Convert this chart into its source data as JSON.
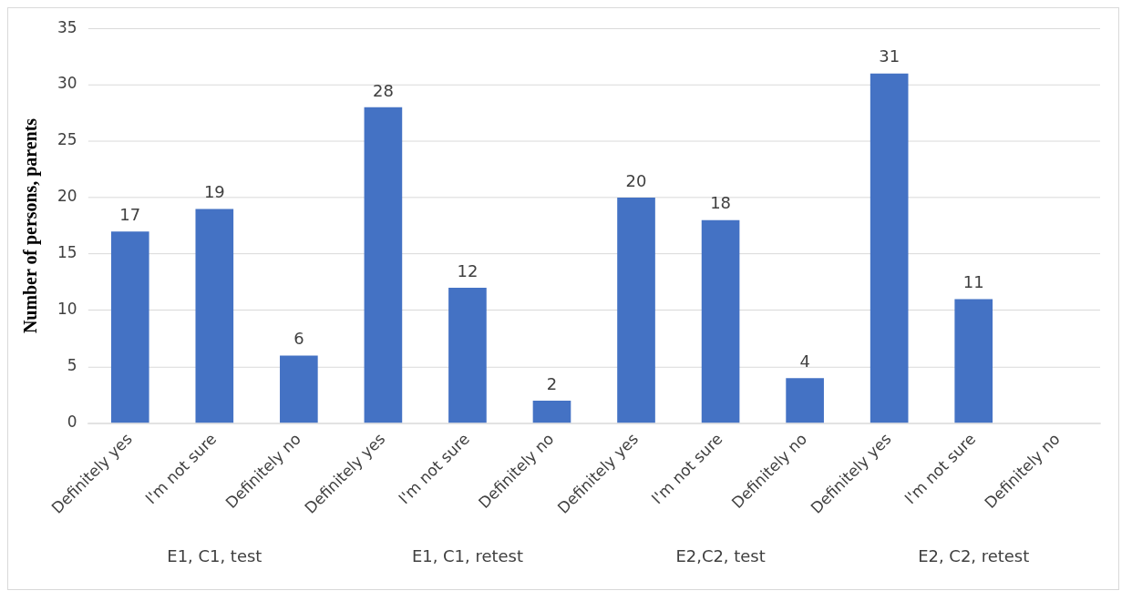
{
  "chart_data": {
    "type": "bar",
    "ylabel": "Number of persons, parents",
    "categories": [
      "Definitely yes",
      "I'm not sure",
      "Definitely no",
      "Definitely yes",
      "I'm not sure",
      "Definitely no",
      "Definitely yes",
      "I'm not sure",
      "Definitely no",
      "Definitely yes",
      "I'm not sure",
      "Definitely no"
    ],
    "values": [
      17,
      19,
      6,
      28,
      12,
      2,
      20,
      18,
      4,
      31,
      11,
      null
    ],
    "color": "#4472c4",
    "ylim": [
      0,
      35
    ],
    "yticks": [
      0,
      5,
      10,
      15,
      20,
      25,
      30,
      35
    ],
    "grid": "y",
    "data_labels": true,
    "annotations": [
      "E1, C1, test",
      "E1, C1, retest",
      "E2,C2, test",
      "E2, C2, retest"
    ]
  }
}
